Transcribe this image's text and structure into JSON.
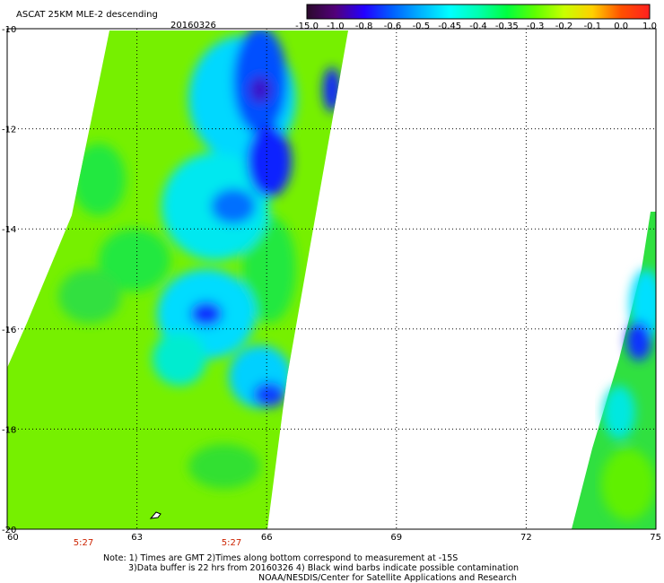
{
  "header": {
    "product": "ASCAT 25KM MLE-2 descending",
    "date": "20160326"
  },
  "colorbar": {
    "labels": [
      "-15.0",
      "-1.0",
      "-0.8",
      "-0.6",
      "-0.5",
      "-0.45",
      "-0.4",
      "-0.35",
      "-0.3",
      "-0.2",
      "-0.1",
      "0.0",
      "1.0"
    ],
    "colors": [
      "#2b0a2b",
      "#52007a",
      "#2400ff",
      "#0060ff",
      "#00b4ff",
      "#00ffff",
      "#00ffb0",
      "#00ff40",
      "#60ff00",
      "#c8ff00",
      "#ffd000",
      "#ff5000",
      "#ff2020"
    ]
  },
  "map": {
    "lat_labels": [
      "-10",
      "-12",
      "-14",
      "-16",
      "-18",
      "-20"
    ],
    "lon_labels": [
      "60",
      "63",
      "66",
      "69",
      "72",
      "75"
    ],
    "time_labels": [
      "5:27",
      "5:27"
    ],
    "lat_range": [
      -20,
      -10
    ],
    "lon_range": [
      60,
      75
    ],
    "grid": true,
    "swaths": [
      {
        "name": "west",
        "lon_top": [
          62.4,
          67.6
        ],
        "lon_bottom": [
          60.2,
          66.0
        ]
      },
      {
        "name": "east",
        "lon_top": [
          74.6,
          75
        ],
        "lon_bottom": [
          73.0,
          75
        ]
      }
    ]
  },
  "notes": {
    "line1": "Note: 1) Times are GMT 2)Times along bottom correspond to measurement at -15S",
    "line2": "3)Data buffer is 22 hrs from 20160326 4) Black wind barbs indicate possible contamination",
    "line3": "NOAA/NESDIS/Center for Satellite Applications and Research"
  }
}
